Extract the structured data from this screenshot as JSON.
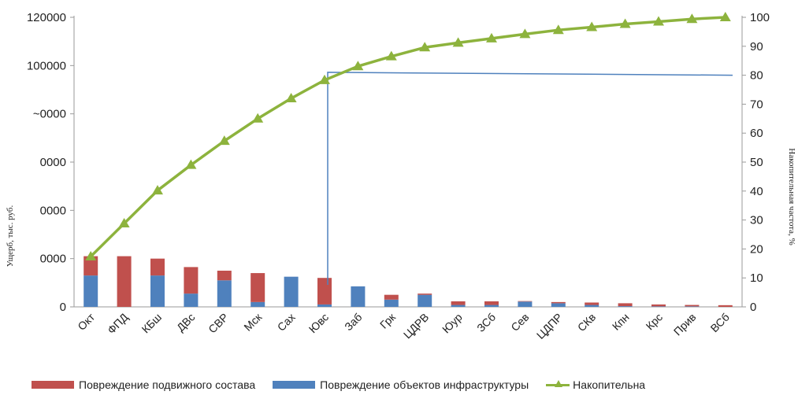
{
  "chart_data": {
    "type": "bar",
    "stacked": true,
    "categories": [
      "Окт",
      "ФПД",
      "КБш",
      "ДВс",
      "СВР",
      "Мск",
      "Сах",
      "Ювс",
      "Заб",
      "Грк",
      "ЦДРВ",
      "Юур",
      "ЗСб",
      "Сев",
      "ЦДПР",
      "СКв",
      "Кпн",
      "Крс",
      "Прив",
      "ВСб"
    ],
    "series": [
      {
        "name": "Повреждение подвижного состава",
        "color": "#C0504D",
        "values": [
          8000,
          21000,
          7000,
          11000,
          4000,
          12000,
          0,
          11000,
          0,
          2000,
          500,
          1500,
          1500,
          200,
          500,
          1000,
          1200,
          800,
          600,
          700
        ]
      },
      {
        "name": "Повреждение объектов инфраструктуры",
        "color": "#4F81BD",
        "values": [
          13000,
          0,
          13000,
          5500,
          11000,
          2000,
          12500,
          1000,
          8500,
          3000,
          5000,
          800,
          800,
          2200,
          1500,
          800,
          300,
          200,
          200,
          0
        ]
      },
      {
        "name": "Накопительна",
        "color": "#8DB33D",
        "axis": "y2",
        "values": [
          17.4,
          28.8,
          40.2,
          49,
          57.3,
          65,
          72,
          78.3,
          83.1,
          86.5,
          89.6,
          91.2,
          92.7,
          94.2,
          95.6,
          96.6,
          97.7,
          98.5,
          99.4,
          100
        ]
      }
    ],
    "threshold_line": {
      "color": "#4F81BD",
      "x_category": "Ювс",
      "value_start": 81,
      "value_end": 80,
      "axis": "y2"
    },
    "ylabel": "Ущерб, тыс. руб.",
    "y2label": "Накопительная частота, %",
    "y_ticks": [
      "120000",
      "100000",
      "~0000",
      "0000",
      "0000",
      "0000",
      "0"
    ],
    "ylim": [
      0,
      120000
    ],
    "y2lim": [
      0,
      100
    ],
    "y2_ticks": [
      "100",
      "90",
      "80",
      "70",
      "60",
      "50",
      "40",
      "30",
      "20",
      "10",
      "0"
    ],
    "grid": false,
    "legend_position": "bottom"
  }
}
